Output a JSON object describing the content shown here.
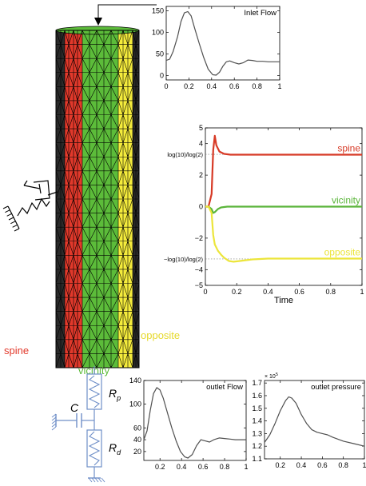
{
  "figure": {
    "region_labels": {
      "spine": "spine",
      "vicinity": "vicinity",
      "opposite": "opposite"
    },
    "circuit_labels": {
      "rp": "R",
      "rp_sub": "p",
      "rd": "R",
      "rd_sub": "d",
      "c": "C"
    },
    "colors": {
      "spine": "#e2392b",
      "vicinity": "#5cbc3a",
      "opposite": "#f4eb3c",
      "circuit": "#6f8fc8",
      "curve": "#505050"
    }
  },
  "chart_data": [
    {
      "id": "inlet",
      "type": "line",
      "title": "Inlet Flow",
      "xlim": [
        0,
        1
      ],
      "ylim": [
        -10,
        160
      ],
      "xticks": [
        0,
        0.2,
        0.4,
        0.6,
        0.8,
        1
      ],
      "xtick_labels": [
        "0",
        "0.2",
        "0.4",
        "0.6",
        "0.8",
        "1"
      ],
      "yticks": [
        0,
        50,
        100,
        150
      ],
      "ytick_labels": [
        "0",
        "50",
        "100",
        "150"
      ],
      "series": [
        {
          "x": [
            0,
            0.03,
            0.06,
            0.1,
            0.13,
            0.16,
            0.19,
            0.22,
            0.25,
            0.29,
            0.33,
            0.37,
            0.41,
            0.44,
            0.47,
            0.5,
            0.53,
            0.56,
            0.6,
            0.64,
            0.68,
            0.72,
            0.76,
            0.8,
            0.85,
            0.9,
            0.95,
            1
          ],
          "y": [
            35,
            38,
            55,
            90,
            125,
            145,
            148,
            138,
            110,
            75,
            42,
            15,
            2,
            1,
            8,
            22,
            32,
            34,
            30,
            27,
            30,
            36,
            35,
            33,
            33,
            32,
            32,
            32
          ]
        }
      ]
    },
    {
      "id": "log",
      "type": "line",
      "xlabel": "Time",
      "xlim": [
        0,
        1
      ],
      "ylim": [
        -5,
        5
      ],
      "xticks": [
        0,
        0.2,
        0.4,
        0.6,
        0.8,
        1
      ],
      "xtick_labels": [
        "0",
        "0.2",
        "0.4",
        "0.6",
        "0.8",
        "1"
      ],
      "yticks": [
        -5,
        -4,
        -2,
        0,
        2,
        4,
        5
      ],
      "ytick_labels": [
        "−5",
        "−4",
        "−2",
        "0",
        "2",
        "4",
        "5"
      ],
      "ref_lines": [
        {
          "y": 3.3219,
          "label": "log(10)/log(2)"
        },
        {
          "y": -3.3219,
          "label": "−log(10)/log(2)"
        }
      ],
      "series": [
        {
          "name": "spine",
          "color": "#d73a26",
          "x": [
            0,
            0.02,
            0.04,
            0.05,
            0.06,
            0.07,
            0.09,
            0.12,
            0.16,
            0.2,
            0.3,
            0.5,
            0.7,
            1
          ],
          "y": [
            0,
            0,
            0.8,
            3.6,
            4.5,
            3.9,
            3.5,
            3.35,
            3.3,
            3.3,
            3.3,
            3.3,
            3.3,
            3.3
          ]
        },
        {
          "name": "vicinity",
          "color": "#5ab53a",
          "x": [
            0,
            0.02,
            0.04,
            0.05,
            0.06,
            0.08,
            0.1,
            0.14,
            0.2,
            0.4,
            0.7,
            1
          ],
          "y": [
            0,
            0,
            -0.15,
            -0.4,
            -0.35,
            -0.15,
            -0.05,
            0,
            0,
            0,
            0,
            0
          ]
        },
        {
          "name": "opposite",
          "color": "#ece53a",
          "x": [
            0,
            0.02,
            0.04,
            0.05,
            0.06,
            0.08,
            0.1,
            0.12,
            0.15,
            0.18,
            0.22,
            0.3,
            0.4,
            0.6,
            0.8,
            1
          ],
          "y": [
            0,
            0,
            -0.4,
            -1.8,
            -2.4,
            -2.8,
            -3.05,
            -3.25,
            -3.45,
            -3.5,
            -3.45,
            -3.35,
            -3.3,
            -3.3,
            -3.3,
            -3.3
          ]
        }
      ]
    },
    {
      "id": "outlet_flow",
      "type": "line",
      "title": "outlet Flow",
      "xlim": [
        0.05,
        1
      ],
      "ylim": [
        5,
        140
      ],
      "xticks": [
        0.2,
        0.4,
        0.6,
        0.8,
        1
      ],
      "xtick_labels": [
        "0.2",
        "0.4",
        "0.6",
        "0.8",
        "1"
      ],
      "yticks": [
        20,
        40,
        60,
        100,
        140
      ],
      "ytick_labels": [
        "20",
        "40",
        "60",
        "100",
        "140"
      ],
      "series": [
        {
          "x": [
            0.05,
            0.08,
            0.11,
            0.14,
            0.17,
            0.2,
            0.23,
            0.27,
            0.31,
            0.35,
            0.39,
            0.43,
            0.46,
            0.5,
            0.54,
            0.58,
            0.62,
            0.66,
            0.7,
            0.75,
            0.8,
            0.85,
            0.9,
            0.95,
            1
          ],
          "y": [
            40,
            55,
            90,
            118,
            128,
            124,
            110,
            85,
            60,
            38,
            20,
            11,
            9,
            15,
            30,
            40,
            38,
            36,
            40,
            43,
            42,
            41,
            40,
            40,
            40
          ]
        }
      ]
    },
    {
      "id": "outlet_pressure",
      "type": "line",
      "title": "outlet pressure",
      "multiplier_label": "× 10",
      "multiplier_exp": "5",
      "xlim": [
        0.05,
        1
      ],
      "ylim": [
        1.1,
        1.72
      ],
      "xticks": [
        0.2,
        0.4,
        0.6,
        0.8,
        1
      ],
      "xtick_labels": [
        "0.2",
        "0.4",
        "0.6",
        "0.8",
        "1"
      ],
      "yticks": [
        1.1,
        1.2,
        1.3,
        1.4,
        1.5,
        1.6,
        1.7
      ],
      "ytick_labels": [
        "1.1",
        "1.2",
        "1.3",
        "1.4",
        "1.5",
        "1.6",
        "1.7"
      ],
      "series": [
        {
          "x": [
            0.05,
            0.1,
            0.15,
            0.2,
            0.25,
            0.28,
            0.31,
            0.35,
            0.4,
            0.45,
            0.5,
            0.55,
            0.6,
            0.65,
            0.7,
            0.8,
            0.9,
            1
          ],
          "y": [
            1.23,
            1.29,
            1.38,
            1.48,
            1.56,
            1.59,
            1.58,
            1.54,
            1.45,
            1.38,
            1.33,
            1.31,
            1.3,
            1.29,
            1.27,
            1.24,
            1.22,
            1.2
          ]
        }
      ]
    }
  ]
}
